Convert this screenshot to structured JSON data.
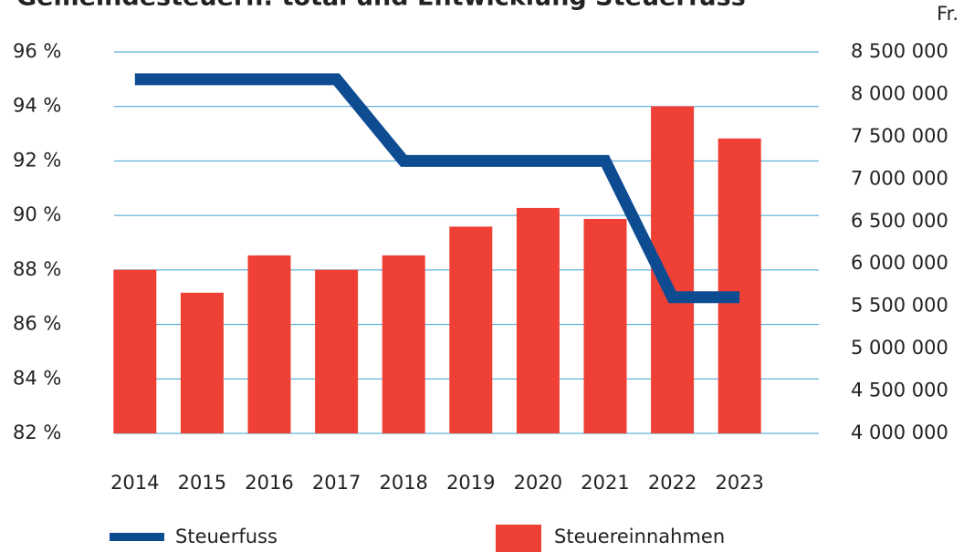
{
  "chart_data": {
    "type": "bar",
    "title": "Gemeindesteuern: total und Entwicklung Steuerfuss",
    "y2_label": "Fr.",
    "categories": [
      "2014",
      "2015",
      "2016",
      "2017",
      "2018",
      "2019",
      "2020",
      "2021",
      "2022",
      "2023"
    ],
    "series": [
      {
        "name": "Steuerfuss",
        "type": "line",
        "axis": "y",
        "color": "#0e4c92",
        "values": [
          95,
          95,
          95,
          95,
          92,
          92,
          92,
          92,
          87,
          87
        ]
      },
      {
        "name": "Steuereinnahmen",
        "type": "bar",
        "axis": "y2",
        "color": "#ef4035",
        "values": [
          5930000,
          5660000,
          6100000,
          5930000,
          6100000,
          6440000,
          6660000,
          6530000,
          7860000,
          7480000
        ]
      }
    ],
    "ylim": [
      82,
      96
    ],
    "yticks": [
      {
        "value": 82,
        "label": "82 %"
      },
      {
        "value": 84,
        "label": "84 %"
      },
      {
        "value": 86,
        "label": "86 %"
      },
      {
        "value": 88,
        "label": "88 %"
      },
      {
        "value": 90,
        "label": "90 %"
      },
      {
        "value": 92,
        "label": "92 %"
      },
      {
        "value": 94,
        "label": "94 %"
      },
      {
        "value": 96,
        "label": "96 %"
      }
    ],
    "y2lim": [
      4000000,
      8500000
    ],
    "y2ticks": [
      {
        "value": 4000000,
        "label": "4 000 000"
      },
      {
        "value": 4500000,
        "label": "4 500 000"
      },
      {
        "value": 5000000,
        "label": "5 000 000"
      },
      {
        "value": 5500000,
        "label": "5 500 000"
      },
      {
        "value": 6000000,
        "label": "6 000 000"
      },
      {
        "value": 6500000,
        "label": "6 500 000"
      },
      {
        "value": 7000000,
        "label": "7 000 000"
      },
      {
        "value": 7500000,
        "label": "7 500 000"
      },
      {
        "value": 8000000,
        "label": "8 000 000"
      },
      {
        "value": 8500000,
        "label": "8 500 000"
      }
    ],
    "grid": true,
    "grid_color": "#3aa0d0",
    "y2_color": "#ef4035"
  }
}
